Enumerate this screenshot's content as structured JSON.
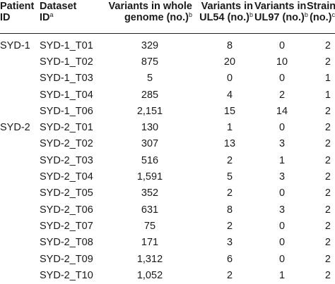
{
  "header": {
    "patient_line1": "Patient",
    "patient_line2": "ID",
    "dataset_line1": "Dataset",
    "dataset_line2": "ID",
    "dataset_sup": "a",
    "genome_line1": "Variants in whole",
    "genome_line2": "genome (no.)",
    "genome_sup": "b",
    "ul54_line1": "Variants in",
    "ul54_line2": "UL54 (no.)",
    "ul54_sup": "b",
    "ul97_line1": "Variants in",
    "ul97_line2": "UL97 (no.)",
    "ul97_sup": "b",
    "strains_line1": "Strains",
    "strains_line2": "(no.)",
    "strains_sup": "c"
  },
  "rows": [
    {
      "patient": "SYD-1",
      "dataset": "SYD-1_T01",
      "genome": "329",
      "ul54": "8",
      "ul97": "0",
      "strains": "2"
    },
    {
      "patient": "",
      "dataset": "SYD-1_T02",
      "genome": "875",
      "ul54": "20",
      "ul97": "10",
      "strains": "2"
    },
    {
      "patient": "",
      "dataset": "SYD-1_T03",
      "genome": "5",
      "ul54": "0",
      "ul97": "0",
      "strains": "1"
    },
    {
      "patient": "",
      "dataset": "SYD-1_T04",
      "genome": "285",
      "ul54": "4",
      "ul97": "2",
      "strains": "1"
    },
    {
      "patient": "",
      "dataset": "SYD-1_T06",
      "genome": "2,151",
      "ul54": "15",
      "ul97": "14",
      "strains": "2"
    },
    {
      "patient": "SYD-2",
      "dataset": "SYD-2_T01",
      "genome": "130",
      "ul54": "1",
      "ul97": "0",
      "strains": "2"
    },
    {
      "patient": "",
      "dataset": "SYD-2_T02",
      "genome": "307",
      "ul54": "13",
      "ul97": "3",
      "strains": "2"
    },
    {
      "patient": "",
      "dataset": "SYD-2_T03",
      "genome": "516",
      "ul54": "2",
      "ul97": "1",
      "strains": "2"
    },
    {
      "patient": "",
      "dataset": "SYD-2_T04",
      "genome": "1,591",
      "ul54": "5",
      "ul97": "3",
      "strains": "2"
    },
    {
      "patient": "",
      "dataset": "SYD-2_T05",
      "genome": "352",
      "ul54": "2",
      "ul97": "0",
      "strains": "2"
    },
    {
      "patient": "",
      "dataset": "SYD-2_T06",
      "genome": "631",
      "ul54": "8",
      "ul97": "3",
      "strains": "2"
    },
    {
      "patient": "",
      "dataset": "SYD-2_T07",
      "genome": "75",
      "ul54": "2",
      "ul97": "0",
      "strains": "2"
    },
    {
      "patient": "",
      "dataset": "SYD-2_T08",
      "genome": "171",
      "ul54": "3",
      "ul97": "0",
      "strains": "2"
    },
    {
      "patient": "",
      "dataset": "SYD-2_T09",
      "genome": "1,312",
      "ul54": "6",
      "ul97": "0",
      "strains": "2"
    },
    {
      "patient": "",
      "dataset": "SYD-2_T10",
      "genome": "1,052",
      "ul54": "2",
      "ul97": "1",
      "strains": "2"
    }
  ]
}
